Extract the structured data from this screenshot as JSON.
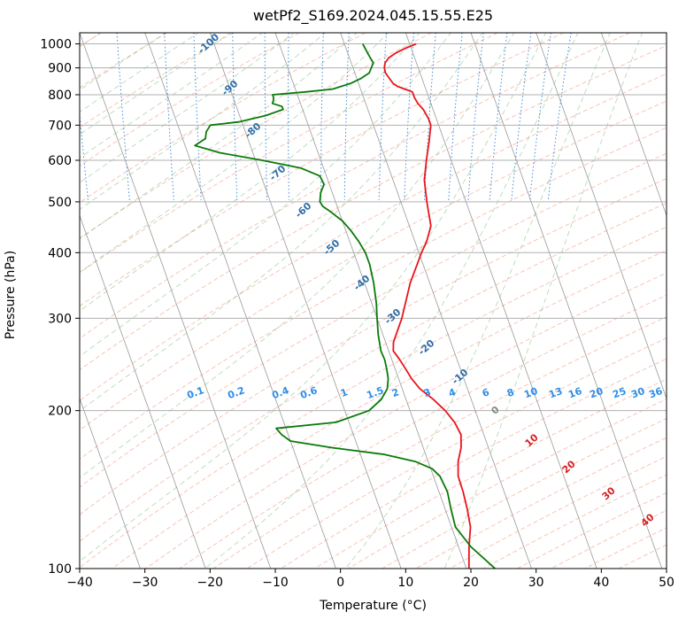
{
  "chart_data": {
    "type": "line",
    "title": "wetPf2_S169.2024.045.15.55.E25",
    "xlabel": "Temperature (°C)",
    "ylabel": "Pressure (hPa)",
    "xlim": [
      -40,
      50
    ],
    "ylim": [
      1050,
      100
    ],
    "y_scale": "log",
    "grid": true,
    "x_ticks": [
      -40,
      -30,
      -20,
      -10,
      0,
      10,
      20,
      30,
      40,
      50
    ],
    "y_ticks": [
      1000,
      900,
      800,
      700,
      600,
      500,
      400,
      300,
      200,
      100
    ],
    "skew_T": true,
    "series": [
      {
        "color": "#e8141c",
        "points": [
          [
            1000,
            11
          ],
          [
            980,
            9
          ],
          [
            960,
            7.3
          ],
          [
            940,
            6.0
          ],
          [
            920,
            5.2
          ],
          [
            900,
            4.8
          ],
          [
            880,
            4.7
          ],
          [
            860,
            5.0
          ],
          [
            840,
            5.3
          ],
          [
            830,
            5.8
          ],
          [
            820,
            6.8
          ],
          [
            810,
            7.8
          ],
          [
            800,
            7.8
          ],
          [
            790,
            7.8
          ],
          [
            770,
            8.0
          ],
          [
            750,
            8.5
          ],
          [
            720,
            8.8
          ],
          [
            700,
            8.8
          ],
          [
            650,
            7.6
          ],
          [
            600,
            6.2
          ],
          [
            550,
            4.8
          ],
          [
            500,
            4.0
          ],
          [
            450,
            3.3
          ],
          [
            420,
            1.8
          ],
          [
            400,
            0.4
          ],
          [
            350,
            -3.0
          ],
          [
            300,
            -6.2
          ],
          [
            270,
            -8.8
          ],
          [
            260,
            -9.3
          ],
          [
            250,
            -8.8
          ],
          [
            240,
            -8.4
          ],
          [
            230,
            -8.0
          ],
          [
            220,
            -7.3
          ],
          [
            210,
            -5.8
          ],
          [
            200,
            -4.6
          ],
          [
            190,
            -3.8
          ],
          [
            180,
            -3.5
          ],
          [
            170,
            -4.2
          ],
          [
            160,
            -5.4
          ],
          [
            150,
            -6.2
          ],
          [
            140,
            -6.3
          ],
          [
            130,
            -6.6
          ],
          [
            120,
            -7.1
          ],
          [
            110,
            -8.4
          ],
          [
            100,
            -9.6
          ]
        ]
      },
      {
        "color": "#0a7a0a",
        "points": [
          [
            1000,
            2.8
          ],
          [
            970,
            3.0
          ],
          [
            940,
            3.2
          ],
          [
            920,
            3.4
          ],
          [
            900,
            2.8
          ],
          [
            880,
            2.2
          ],
          [
            860,
            0.7
          ],
          [
            840,
            -1.3
          ],
          [
            820,
            -4.3
          ],
          [
            810,
            -8.6
          ],
          [
            800,
            -13.8
          ],
          [
            790,
            -13.8
          ],
          [
            780,
            -14.0
          ],
          [
            770,
            -14.3
          ],
          [
            760,
            -13.0
          ],
          [
            750,
            -13.0
          ],
          [
            730,
            -16.0
          ],
          [
            710,
            -20.5
          ],
          [
            700,
            -25.0
          ],
          [
            680,
            -26.0
          ],
          [
            660,
            -26.5
          ],
          [
            640,
            -28.5
          ],
          [
            620,
            -25.0
          ],
          [
            600,
            -19.0
          ],
          [
            580,
            -13.5
          ],
          [
            560,
            -11.0
          ],
          [
            540,
            -10.8
          ],
          [
            520,
            -11.8
          ],
          [
            500,
            -12.4
          ],
          [
            490,
            -12.2
          ],
          [
            480,
            -11.4
          ],
          [
            460,
            -10.0
          ],
          [
            440,
            -9.2
          ],
          [
            420,
            -8.6
          ],
          [
            400,
            -8.2
          ],
          [
            380,
            -8.2
          ],
          [
            350,
            -8.6
          ],
          [
            320,
            -9.3
          ],
          [
            300,
            -10.0
          ],
          [
            280,
            -10.7
          ],
          [
            260,
            -11.2
          ],
          [
            250,
            -11.1
          ],
          [
            240,
            -11.3
          ],
          [
            230,
            -11.6
          ],
          [
            220,
            -12.3
          ],
          [
            210,
            -13.8
          ],
          [
            200,
            -16.3
          ],
          [
            190,
            -22
          ],
          [
            185,
            -31.5
          ],
          [
            180,
            -31
          ],
          [
            175,
            -30
          ],
          [
            170,
            -24
          ],
          [
            165,
            -16.3
          ],
          [
            160,
            -12.0
          ],
          [
            155,
            -9.8
          ],
          [
            150,
            -9.0
          ],
          [
            140,
            -8.7
          ],
          [
            130,
            -9.1
          ],
          [
            120,
            -9.4
          ],
          [
            110,
            -8.1
          ],
          [
            100,
            -5.6
          ]
        ]
      }
    ],
    "dry_adiabat_labels": [
      "-100",
      "-90",
      "-80",
      "-70",
      "-60",
      "-50",
      "-40",
      "-30",
      "-20",
      "-10"
    ],
    "mixing_ratio_labels": [
      "0.1",
      "0.2",
      "0.4",
      "0.6",
      "1",
      "1.5",
      "2",
      "3",
      "4",
      "6",
      "8",
      "10",
      "13",
      "16",
      "20",
      "25",
      "30",
      "36"
    ],
    "moist_adiabat_labels": [
      "0",
      "10",
      "20",
      "30",
      "40"
    ]
  }
}
